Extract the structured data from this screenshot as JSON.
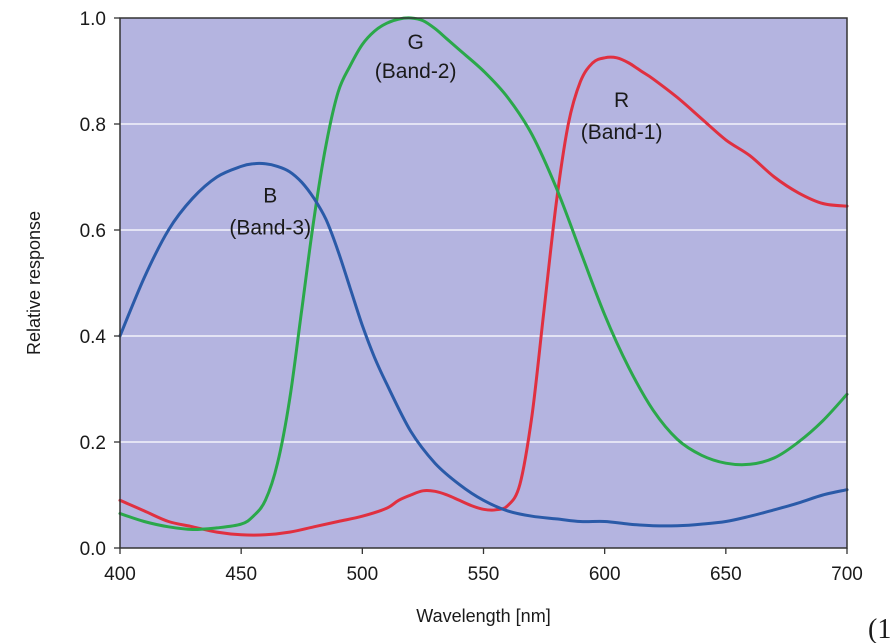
{
  "chart_data": {
    "type": "line",
    "title": "",
    "xlabel": "Wavelength [nm]",
    "ylabel": "Relative response",
    "xlim": [
      400,
      700
    ],
    "ylim": [
      0.0,
      1.0
    ],
    "xticks": [
      400,
      450,
      500,
      550,
      600,
      650,
      700
    ],
    "xtick_labels": [
      "400",
      "450",
      "500",
      "550",
      "600",
      "650",
      "700"
    ],
    "yticks": [
      0.0,
      0.2,
      0.4,
      0.6,
      0.8,
      1.0
    ],
    "ytick_labels": [
      "0.0",
      "0.2",
      "0.4",
      "0.6",
      "0.8",
      "1.0"
    ],
    "grid": "horizontal",
    "background": "#b4b4e0",
    "series": [
      {
        "name": "R (Band-1)",
        "color": "#e03040",
        "x": [
          400,
          410,
          420,
          430,
          440,
          450,
          460,
          470,
          480,
          490,
          500,
          510,
          515,
          520,
          525,
          530,
          535,
          540,
          545,
          550,
          555,
          560,
          565,
          570,
          575,
          580,
          585,
          590,
          595,
          600,
          605,
          610,
          615,
          620,
          630,
          640,
          650,
          660,
          670,
          680,
          690,
          700
        ],
        "y": [
          0.09,
          0.07,
          0.05,
          0.04,
          0.03,
          0.025,
          0.025,
          0.03,
          0.04,
          0.05,
          0.06,
          0.075,
          0.09,
          0.1,
          0.108,
          0.107,
          0.1,
          0.09,
          0.08,
          0.073,
          0.072,
          0.08,
          0.12,
          0.25,
          0.45,
          0.65,
          0.8,
          0.88,
          0.915,
          0.925,
          0.925,
          0.915,
          0.9,
          0.885,
          0.85,
          0.81,
          0.77,
          0.74,
          0.7,
          0.67,
          0.65,
          0.645
        ]
      },
      {
        "name": "G (Band-2)",
        "color": "#2aa84a",
        "x": [
          400,
          410,
          420,
          430,
          440,
          450,
          455,
          460,
          465,
          470,
          475,
          480,
          485,
          490,
          495,
          500,
          505,
          510,
          515,
          520,
          525,
          530,
          535,
          540,
          550,
          560,
          570,
          580,
          590,
          600,
          610,
          620,
          630,
          640,
          650,
          660,
          670,
          680,
          690,
          700
        ],
        "y": [
          0.065,
          0.05,
          0.04,
          0.035,
          0.038,
          0.045,
          0.06,
          0.09,
          0.16,
          0.28,
          0.45,
          0.62,
          0.76,
          0.86,
          0.91,
          0.95,
          0.975,
          0.99,
          0.998,
          1.0,
          0.995,
          0.98,
          0.96,
          0.94,
          0.9,
          0.85,
          0.78,
          0.68,
          0.56,
          0.44,
          0.34,
          0.26,
          0.205,
          0.175,
          0.16,
          0.158,
          0.17,
          0.2,
          0.24,
          0.29
        ]
      },
      {
        "name": "B (Band-3)",
        "color": "#2a5aa8",
        "x": [
          400,
          410,
          420,
          430,
          440,
          450,
          455,
          460,
          465,
          470,
          475,
          480,
          485,
          490,
          495,
          500,
          505,
          510,
          520,
          530,
          540,
          550,
          560,
          570,
          580,
          590,
          600,
          610,
          620,
          630,
          640,
          650,
          660,
          670,
          680,
          690,
          700
        ],
        "y": [
          0.4,
          0.51,
          0.6,
          0.66,
          0.7,
          0.72,
          0.725,
          0.725,
          0.72,
          0.71,
          0.69,
          0.66,
          0.62,
          0.56,
          0.49,
          0.42,
          0.36,
          0.31,
          0.22,
          0.16,
          0.12,
          0.09,
          0.07,
          0.06,
          0.055,
          0.05,
          0.05,
          0.045,
          0.042,
          0.042,
          0.045,
          0.05,
          0.06,
          0.072,
          0.085,
          0.1,
          0.11
        ]
      }
    ],
    "annotations": [
      {
        "lines": [
          "G",
          "(Band-2)"
        ],
        "x": 522,
        "y": [
          0.955,
          0.9
        ]
      },
      {
        "lines": [
          "R",
          "(Band-1)"
        ],
        "x": 607,
        "y": [
          0.845,
          0.785
        ]
      },
      {
        "lines": [
          "B",
          "(Band-3)"
        ],
        "x": 462,
        "y": [
          0.665,
          0.605
        ]
      }
    ],
    "corner_text": "(1"
  }
}
